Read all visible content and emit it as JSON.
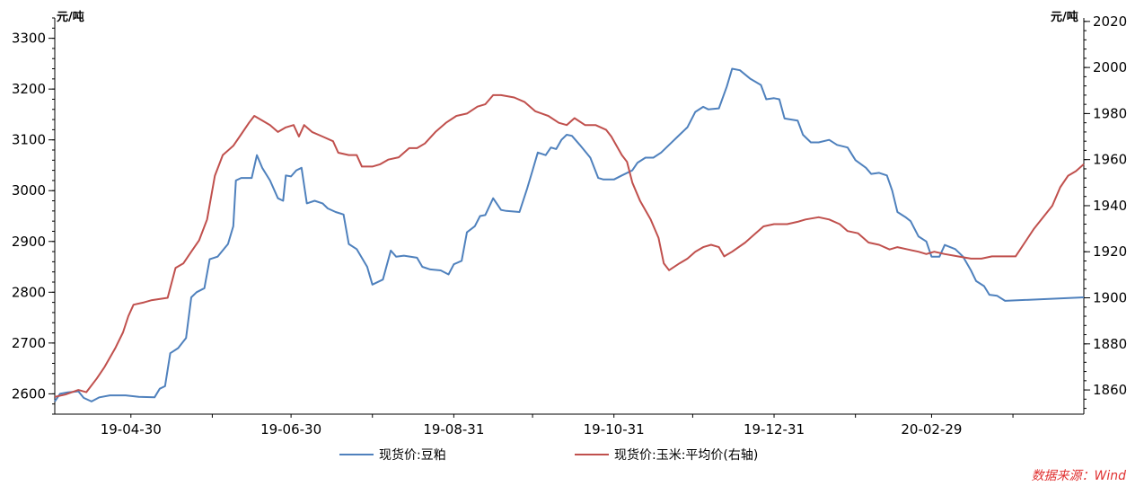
{
  "chart_data": {
    "type": "line",
    "left_unit": "元/吨",
    "right_unit": "元/吨",
    "x_tick_labels": [
      "19-04-30",
      "19-06-30",
      "19-08-31",
      "19-10-31",
      "19-12-31",
      "20-02-29"
    ],
    "y_left": {
      "range": [
        2560,
        3340
      ],
      "ticks": [
        2600,
        2700,
        2800,
        2900,
        3000,
        3100,
        3200,
        3300
      ]
    },
    "y_right": {
      "range": [
        1849.5,
        2021.5
      ],
      "ticks": [
        1860,
        1880,
        1900,
        1920,
        1940,
        1960,
        1980,
        2000,
        2020
      ]
    },
    "x_range": [
      "2019-04-01",
      "2020-04-27"
    ],
    "grid": false,
    "legend_position": "bottom",
    "series": [
      {
        "name": "现货价:豆粕",
        "axis": "left",
        "color": "#4f81bd",
        "points": [
          [
            "2019-04-01",
            2585
          ],
          [
            "2019-04-03",
            2600
          ],
          [
            "2019-04-06",
            2603
          ],
          [
            "2019-04-10",
            2605
          ],
          [
            "2019-04-12",
            2592
          ],
          [
            "2019-04-15",
            2585
          ],
          [
            "2019-04-18",
            2593
          ],
          [
            "2019-04-22",
            2597
          ],
          [
            "2019-04-28",
            2597
          ],
          [
            "2019-05-03",
            2594
          ],
          [
            "2019-05-09",
            2593
          ],
          [
            "2019-05-11",
            2610
          ],
          [
            "2019-05-13",
            2615
          ],
          [
            "2019-05-15",
            2680
          ],
          [
            "2019-05-18",
            2690
          ],
          [
            "2019-05-21",
            2710
          ],
          [
            "2019-05-23",
            2790
          ],
          [
            "2019-05-25",
            2800
          ],
          [
            "2019-05-28",
            2808
          ],
          [
            "2019-05-30",
            2865
          ],
          [
            "2019-06-02",
            2870
          ],
          [
            "2019-06-06",
            2895
          ],
          [
            "2019-06-08",
            2930
          ],
          [
            "2019-06-09",
            3020
          ],
          [
            "2019-06-11",
            3025
          ],
          [
            "2019-06-15",
            3025
          ],
          [
            "2019-06-17",
            3070
          ],
          [
            "2019-06-19",
            3045
          ],
          [
            "2019-06-22",
            3020
          ],
          [
            "2019-06-25",
            2985
          ],
          [
            "2019-06-27",
            2980
          ],
          [
            "2019-06-28",
            3030
          ],
          [
            "2019-06-30",
            3028
          ],
          [
            "2019-07-02",
            3040
          ],
          [
            "2019-07-04",
            3045
          ],
          [
            "2019-07-06",
            2975
          ],
          [
            "2019-07-09",
            2980
          ],
          [
            "2019-07-12",
            2975
          ],
          [
            "2019-07-14",
            2965
          ],
          [
            "2019-07-17",
            2958
          ],
          [
            "2019-07-20",
            2953
          ],
          [
            "2019-07-22",
            2895
          ],
          [
            "2019-07-25",
            2885
          ],
          [
            "2019-07-29",
            2850
          ],
          [
            "2019-07-31",
            2815
          ],
          [
            "2019-08-04",
            2825
          ],
          [
            "2019-08-07",
            2882
          ],
          [
            "2019-08-09",
            2870
          ],
          [
            "2019-08-12",
            2872
          ],
          [
            "2019-08-17",
            2868
          ],
          [
            "2019-08-19",
            2850
          ],
          [
            "2019-08-22",
            2845
          ],
          [
            "2019-08-26",
            2843
          ],
          [
            "2019-08-29",
            2835
          ],
          [
            "2019-08-31",
            2855
          ],
          [
            "2019-09-03",
            2862
          ],
          [
            "2019-09-05",
            2918
          ],
          [
            "2019-09-08",
            2930
          ],
          [
            "2019-09-10",
            2950
          ],
          [
            "2019-09-12",
            2952
          ],
          [
            "2019-09-15",
            2985
          ],
          [
            "2019-09-18",
            2962
          ],
          [
            "2019-09-20",
            2960
          ],
          [
            "2019-09-25",
            2958
          ],
          [
            "2019-09-28",
            3005
          ],
          [
            "2019-09-30",
            3040
          ],
          [
            "2019-10-02",
            3075
          ],
          [
            "2019-10-05",
            3070
          ],
          [
            "2019-10-07",
            3085
          ],
          [
            "2019-10-09",
            3082
          ],
          [
            "2019-10-11",
            3100
          ],
          [
            "2019-10-13",
            3110
          ],
          [
            "2019-10-15",
            3108
          ],
          [
            "2019-10-18",
            3090
          ],
          [
            "2019-10-22",
            3065
          ],
          [
            "2019-10-25",
            3025
          ],
          [
            "2019-10-27",
            3022
          ],
          [
            "2019-10-31",
            3022
          ],
          [
            "2019-11-03",
            3030
          ],
          [
            "2019-11-07",
            3040
          ],
          [
            "2019-11-09",
            3055
          ],
          [
            "2019-11-12",
            3065
          ],
          [
            "2019-11-15",
            3065
          ],
          [
            "2019-11-18",
            3075
          ],
          [
            "2019-11-21",
            3090
          ],
          [
            "2019-11-25",
            3110
          ],
          [
            "2019-11-28",
            3125
          ],
          [
            "2019-12-01",
            3155
          ],
          [
            "2019-12-04",
            3165
          ],
          [
            "2019-12-06",
            3160
          ],
          [
            "2019-12-10",
            3162
          ],
          [
            "2019-12-13",
            3205
          ],
          [
            "2019-12-15",
            3240
          ],
          [
            "2019-12-18",
            3237
          ],
          [
            "2019-12-22",
            3220
          ],
          [
            "2019-12-26",
            3208
          ],
          [
            "2019-12-28",
            3180
          ],
          [
            "2019-12-31",
            3182
          ],
          [
            "2020-01-02",
            3180
          ],
          [
            "2020-01-04",
            3142
          ],
          [
            "2020-01-09",
            3138
          ],
          [
            "2020-01-11",
            3110
          ],
          [
            "2020-01-14",
            3095
          ],
          [
            "2020-01-17",
            3095
          ],
          [
            "2020-01-21",
            3100
          ],
          [
            "2020-01-24",
            3090
          ],
          [
            "2020-01-28",
            3085
          ],
          [
            "2020-01-31",
            3060
          ],
          [
            "2020-02-04",
            3045
          ],
          [
            "2020-02-06",
            3033
          ],
          [
            "2020-02-09",
            3035
          ],
          [
            "2020-02-12",
            3030
          ],
          [
            "2020-02-14",
            3000
          ],
          [
            "2020-02-16",
            2958
          ],
          [
            "2020-02-19",
            2948
          ],
          [
            "2020-02-21",
            2940
          ],
          [
            "2020-02-24",
            2910
          ],
          [
            "2020-02-27",
            2900
          ],
          [
            "2020-02-29",
            2870
          ],
          [
            "2020-03-03",
            2870
          ],
          [
            "2020-03-05",
            2893
          ],
          [
            "2020-03-09",
            2885
          ],
          [
            "2020-03-12",
            2870
          ],
          [
            "2020-03-15",
            2843
          ],
          [
            "2020-03-17",
            2822
          ],
          [
            "2020-03-20",
            2812
          ],
          [
            "2020-03-22",
            2795
          ],
          [
            "2020-03-25",
            2793
          ],
          [
            "2020-03-28",
            2783
          ],
          [
            "2020-04-27",
            2790
          ]
        ],
        "points_tail_note": ""
      },
      {
        "name": "现货价:玉米:平均价(右轴)",
        "axis": "right",
        "color": "#c0504d",
        "points": [
          [
            "2019-04-01",
            1857
          ],
          [
            "2019-04-05",
            1858
          ],
          [
            "2019-04-10",
            1860
          ],
          [
            "2019-04-13",
            1859
          ],
          [
            "2019-04-17",
            1865
          ],
          [
            "2019-04-20",
            1870
          ],
          [
            "2019-04-24",
            1878
          ],
          [
            "2019-04-27",
            1885
          ],
          [
            "2019-04-29",
            1892
          ],
          [
            "2019-05-01",
            1897
          ],
          [
            "2019-05-05",
            1898
          ],
          [
            "2019-05-08",
            1899
          ],
          [
            "2019-05-14",
            1900
          ],
          [
            "2019-05-17",
            1913
          ],
          [
            "2019-05-20",
            1915
          ],
          [
            "2019-05-23",
            1920
          ],
          [
            "2019-05-26",
            1925
          ],
          [
            "2019-05-29",
            1934
          ],
          [
            "2019-06-01",
            1953
          ],
          [
            "2019-06-04",
            1962
          ],
          [
            "2019-06-08",
            1966
          ],
          [
            "2019-06-11",
            1971
          ],
          [
            "2019-06-14",
            1976
          ],
          [
            "2019-06-16",
            1979
          ],
          [
            "2019-06-19",
            1977
          ],
          [
            "2019-06-22",
            1975
          ],
          [
            "2019-06-25",
            1972
          ],
          [
            "2019-06-28",
            1974
          ],
          [
            "2019-07-01",
            1975
          ],
          [
            "2019-07-03",
            1970
          ],
          [
            "2019-07-05",
            1975
          ],
          [
            "2019-07-08",
            1972
          ],
          [
            "2019-07-12",
            1970
          ],
          [
            "2019-07-16",
            1968
          ],
          [
            "2019-07-18",
            1963
          ],
          [
            "2019-07-22",
            1962
          ],
          [
            "2019-07-25",
            1962
          ],
          [
            "2019-07-27",
            1957
          ],
          [
            "2019-07-31",
            1957
          ],
          [
            "2019-08-03",
            1958
          ],
          [
            "2019-08-06",
            1960
          ],
          [
            "2019-08-10",
            1961
          ],
          [
            "2019-08-14",
            1965
          ],
          [
            "2019-08-17",
            1965
          ],
          [
            "2019-08-20",
            1967
          ],
          [
            "2019-08-24",
            1972
          ],
          [
            "2019-08-28",
            1976
          ],
          [
            "2019-09-01",
            1979
          ],
          [
            "2019-09-05",
            1980
          ],
          [
            "2019-09-09",
            1983
          ],
          [
            "2019-09-12",
            1984
          ],
          [
            "2019-09-15",
            1988
          ],
          [
            "2019-09-18",
            1988
          ],
          [
            "2019-09-23",
            1987
          ],
          [
            "2019-09-27",
            1985
          ],
          [
            "2019-10-01",
            1981
          ],
          [
            "2019-10-06",
            1979
          ],
          [
            "2019-10-10",
            1976
          ],
          [
            "2019-10-13",
            1975
          ],
          [
            "2019-10-16",
            1978
          ],
          [
            "2019-10-20",
            1975
          ],
          [
            "2019-10-24",
            1975
          ],
          [
            "2019-10-28",
            1973
          ],
          [
            "2019-10-30",
            1970
          ],
          [
            "2019-11-03",
            1962
          ],
          [
            "2019-11-05",
            1959
          ],
          [
            "2019-11-07",
            1950
          ],
          [
            "2019-11-10",
            1942
          ],
          [
            "2019-11-14",
            1934
          ],
          [
            "2019-11-17",
            1926
          ],
          [
            "2019-11-19",
            1915
          ],
          [
            "2019-11-21",
            1912
          ],
          [
            "2019-11-25",
            1915
          ],
          [
            "2019-11-28",
            1917
          ],
          [
            "2019-12-01",
            1920
          ],
          [
            "2019-12-04",
            1922
          ],
          [
            "2019-12-07",
            1923
          ],
          [
            "2019-12-10",
            1922
          ],
          [
            "2019-12-12",
            1918
          ],
          [
            "2019-12-15",
            1920
          ],
          [
            "2019-12-20",
            1924
          ],
          [
            "2019-12-23",
            1927
          ],
          [
            "2019-12-27",
            1931
          ],
          [
            "2019-12-31",
            1932
          ],
          [
            "2020-01-05",
            1932
          ],
          [
            "2020-01-09",
            1933
          ],
          [
            "2020-01-12",
            1934
          ],
          [
            "2020-01-17",
            1935
          ],
          [
            "2020-01-21",
            1934
          ],
          [
            "2020-01-25",
            1932
          ],
          [
            "2020-01-28",
            1929
          ],
          [
            "2020-02-01",
            1928
          ],
          [
            "2020-02-05",
            1924
          ],
          [
            "2020-02-09",
            1923
          ],
          [
            "2020-02-13",
            1921
          ],
          [
            "2020-02-16",
            1922
          ],
          [
            "2020-02-20",
            1921
          ],
          [
            "2020-02-24",
            1920
          ],
          [
            "2020-02-27",
            1919
          ],
          [
            "2020-03-01",
            1920
          ],
          [
            "2020-03-05",
            1919
          ],
          [
            "2020-03-10",
            1918
          ],
          [
            "2020-03-15",
            1917
          ],
          [
            "2020-03-19",
            1917
          ],
          [
            "2020-03-23",
            1918
          ],
          [
            "2020-03-27",
            1918
          ],
          [
            "2020-04-01",
            1918
          ],
          [
            "2020-04-08",
            1930
          ],
          [
            "2020-04-15",
            1940
          ],
          [
            "2020-04-18",
            1948
          ],
          [
            "2020-04-21",
            1953
          ],
          [
            "2020-04-24",
            1955
          ],
          [
            "2020-04-27",
            1958
          ]
        ]
      }
    ]
  },
  "legend": {
    "series1_label": "现货价:豆粕",
    "series2_label": "现货价:玉米:平均价(右轴)"
  },
  "source_note": "数据来源：Wind"
}
